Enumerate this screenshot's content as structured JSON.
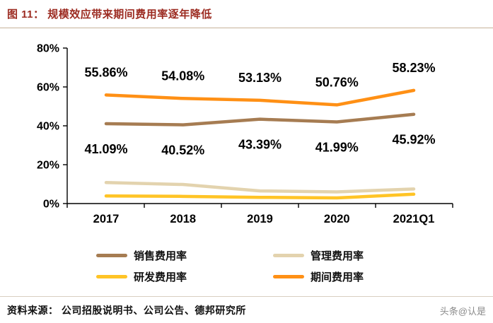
{
  "header": {
    "title": "图 11： 规模效应带来期间费用率逐年降低"
  },
  "chart_data": {
    "type": "line",
    "categories": [
      "2017",
      "2018",
      "2019",
      "2020",
      "2021Q1"
    ],
    "series": [
      {
        "name": "销售费用率",
        "color": "#A67C52",
        "values": [
          41.09,
          40.52,
          43.39,
          41.99,
          45.92
        ],
        "point_labels": [
          "41.09%",
          "40.52%",
          "43.39%",
          "41.99%",
          "45.92%"
        ],
        "label_position": "below"
      },
      {
        "name": "管理费用率",
        "color": "#E3D3AE",
        "values": [
          10.8,
          9.8,
          6.5,
          6.0,
          7.5
        ]
      },
      {
        "name": "研发费用率",
        "color": "#FFC426",
        "values": [
          3.9,
          3.7,
          3.2,
          2.9,
          4.8
        ]
      },
      {
        "name": "期间费用率",
        "color": "#FF9015",
        "values": [
          55.86,
          54.08,
          53.13,
          50.76,
          58.23
        ],
        "point_labels": [
          "55.86%",
          "54.08%",
          "53.13%",
          "50.76%",
          "58.23%"
        ],
        "label_position": "above"
      }
    ],
    "title": "",
    "xlabel": "",
    "ylabel": "",
    "ylim": [
      0,
      80
    ],
    "ytick_values": [
      0,
      20,
      40,
      60,
      80
    ],
    "ytick_labels": [
      "0%",
      "20%",
      "40%",
      "60%",
      "80%"
    ],
    "grid": false,
    "legend_position": "bottom"
  },
  "footer": {
    "source": "资料来源： 公司招股说明书、公司公告、德邦研究所",
    "watermark": "头条@认是"
  }
}
